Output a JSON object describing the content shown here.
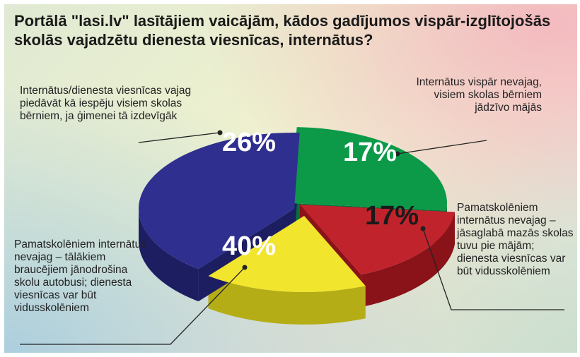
{
  "title": "Portālā \"lasi.lv\" lasītājiem vaicājām, kādos gadījumos vispār-izglītojošās skolās vajadzētu dienesta viesnīcas, internātus?",
  "chart_data": {
    "type": "pie",
    "title": "Portālā \"lasi.lv\" lasītājiem vaicājām, kādos gadījumos vispār-izglītojošās skolās vajadzētu dienesta viesnīcas, internātus?",
    "slices": [
      {
        "value": 26,
        "label": "26%",
        "text": "Internātus/dienesta viesnīcas vajag piedāvāt kā iespēju visiem skolas bērniem, ja ģimenei tā izdevīgāk",
        "color": "#0c9a48",
        "side_color": "#05703a"
      },
      {
        "value": 17,
        "label": "17%",
        "text": "Internātus vispār nevajag, visiem skolas bērniem jādzīvo mājās",
        "color": "#c1232c",
        "side_color": "#8a1219"
      },
      {
        "value": 17,
        "label": "17%",
        "text": "Pamatskolēniem internātus nevajag – jāsaglabā mazās skolas tuvu pie mājām; dienesta viesnīcas var būt vidusskolēniem",
        "color": "#f2e52e",
        "side_color": "#b5ad16"
      },
      {
        "value": 40,
        "label": "40%",
        "text": "Pamatskolēniem internātus nevajag – tālākiem braucējiem jānodrošina skolu autobusi; dienesta viesnīcas var būt vidusskolēniem",
        "color": "#2f2f8f",
        "side_color": "#1d1d62"
      }
    ]
  }
}
